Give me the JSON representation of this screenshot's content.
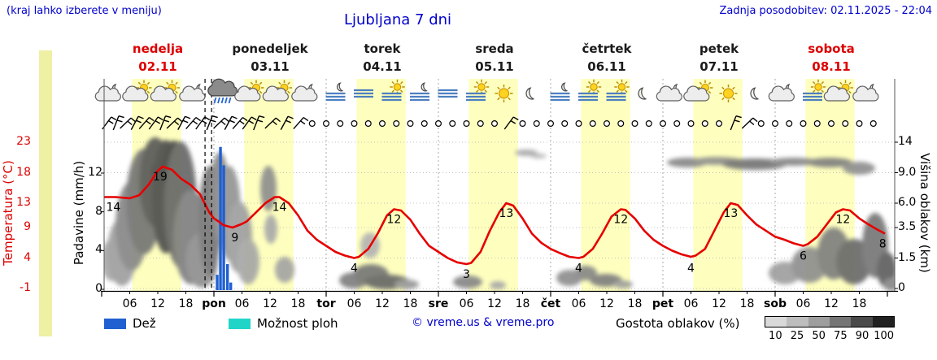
{
  "header": {
    "hint": "(kraj lahko izberete v meniju)",
    "title": "Ljubljana 7 dni",
    "updated": "Zadnja posodobitev: 02.11.2025 - 22:04"
  },
  "days": [
    {
      "name": "nedelja",
      "date": "02.11",
      "color": "#dd0000"
    },
    {
      "name": "ponedeljek",
      "date": "03.11",
      "color": "#1a1a1a"
    },
    {
      "name": "torek",
      "date": "04.11",
      "color": "#1a1a1a"
    },
    {
      "name": "sreda",
      "date": "05.11",
      "color": "#1a1a1a"
    },
    {
      "name": "četrtek",
      "date": "06.11",
      "color": "#1a1a1a"
    },
    {
      "name": "petek",
      "date": "07.11",
      "color": "#1a1a1a"
    },
    {
      "name": "sobota",
      "date": "08.11",
      "color": "#dd0000"
    }
  ],
  "axes": {
    "temp_label": "Temperatura (°C)",
    "precip_label": "Padavine (mm/h)",
    "cloud_label": "Višina oblakov (km)",
    "temp_ticks": [
      23,
      18,
      13,
      9,
      4,
      -1
    ],
    "cloud_ticks": [
      "14",
      "9.0",
      "6.0",
      "3.5",
      "1.5",
      "0"
    ],
    "precip_ticks": [
      12,
      8,
      4,
      0
    ],
    "hour_labels": [
      "06",
      "12",
      "18"
    ],
    "day_abbrs": [
      "pon",
      "tor",
      "sre",
      "čet",
      "pet",
      "sob"
    ]
  },
  "legend": {
    "rain_label": "Dež",
    "rain_color": "#2060d0",
    "showers_label": "Možnost ploh",
    "showers_color": "#20d5c8",
    "credit": "© vreme.us & vreme.pro",
    "density_label": "Gostota oblakov (%)",
    "density_values": [
      "10",
      "25",
      "50",
      "75",
      "90",
      "100"
    ],
    "density_shades": [
      "#d9d9d9",
      "#bdbdbd",
      "#9e9e9e",
      "#757575",
      "#4a4a4a",
      "#212121"
    ]
  },
  "chart_data": {
    "type": "line",
    "title": "Ljubljana 7 dni (meteogram)",
    "x_unit": "hours since 02.11 00:00",
    "colors": {
      "temp": "#e60000",
      "rain": "#2060d0",
      "day_band": "#feffbe",
      "now_line": "#000000"
    },
    "temp_unit": "°C",
    "temp_points": [
      [
        0.5,
        14
      ],
      [
        3,
        14
      ],
      [
        6,
        13.8
      ],
      [
        8,
        14.3
      ],
      [
        10,
        16
      ],
      [
        12,
        18.3
      ],
      [
        13,
        19
      ],
      [
        15,
        18.5
      ],
      [
        17,
        17
      ],
      [
        19,
        16
      ],
      [
        21,
        14.5
      ],
      [
        22,
        13
      ],
      [
        23,
        11.5
      ],
      [
        24,
        10.5
      ],
      [
        25,
        10
      ],
      [
        26,
        9.4
      ],
      [
        28,
        9
      ],
      [
        30,
        9.6
      ],
      [
        31,
        10
      ],
      [
        33,
        11.5
      ],
      [
        35,
        13
      ],
      [
        37,
        14
      ],
      [
        38,
        14
      ],
      [
        40,
        13
      ],
      [
        42,
        11
      ],
      [
        44,
        8.5
      ],
      [
        46,
        7
      ],
      [
        48,
        6
      ],
      [
        50,
        5
      ],
      [
        52,
        4.4
      ],
      [
        54,
        4
      ],
      [
        55,
        4.2
      ],
      [
        57,
        5.5
      ],
      [
        59,
        8
      ],
      [
        61,
        11
      ],
      [
        62.5,
        12
      ],
      [
        64,
        11.8
      ],
      [
        66,
        10.3
      ],
      [
        68,
        8
      ],
      [
        70,
        6
      ],
      [
        72,
        5
      ],
      [
        74,
        4
      ],
      [
        76,
        3.3
      ],
      [
        78,
        3
      ],
      [
        79,
        3.2
      ],
      [
        81,
        5
      ],
      [
        83,
        8.5
      ],
      [
        85,
        11.5
      ],
      [
        86.5,
        13
      ],
      [
        88,
        12.6
      ],
      [
        90,
        10.5
      ],
      [
        92,
        8
      ],
      [
        94,
        6.5
      ],
      [
        96,
        5.5
      ],
      [
        98,
        4.8
      ],
      [
        100,
        4.2
      ],
      [
        102,
        4
      ],
      [
        103,
        4.2
      ],
      [
        105,
        5.5
      ],
      [
        107,
        8
      ],
      [
        109,
        10.8
      ],
      [
        111,
        12
      ],
      [
        112,
        11.9
      ],
      [
        114,
        10.5
      ],
      [
        116,
        8.5
      ],
      [
        118,
        7
      ],
      [
        120,
        6
      ],
      [
        122,
        5.2
      ],
      [
        124,
        4.6
      ],
      [
        126,
        4.2
      ],
      [
        127,
        4.4
      ],
      [
        129,
        5.5
      ],
      [
        131,
        8.5
      ],
      [
        133,
        11.5
      ],
      [
        134.5,
        13
      ],
      [
        136,
        12.7
      ],
      [
        138,
        11
      ],
      [
        140,
        9.5
      ],
      [
        142,
        8.5
      ],
      [
        144,
        7.5
      ],
      [
        146,
        7
      ],
      [
        148,
        6.4
      ],
      [
        150,
        6
      ],
      [
        151,
        6.3
      ],
      [
        153,
        7.5
      ],
      [
        155,
        9.5
      ],
      [
        157,
        11.5
      ],
      [
        158.5,
        12
      ],
      [
        160,
        11.8
      ],
      [
        162,
        10.5
      ],
      [
        164,
        9.5
      ],
      [
        166,
        8.6
      ],
      [
        167.5,
        8
      ]
    ],
    "temp_labels": [
      [
        2.5,
        14
      ],
      [
        12.5,
        19
      ],
      [
        28.5,
        9
      ],
      [
        38,
        14
      ],
      [
        54,
        4
      ],
      [
        62.5,
        12
      ],
      [
        78,
        3
      ],
      [
        86.5,
        13
      ],
      [
        102,
        4
      ],
      [
        111,
        12
      ],
      [
        126,
        4
      ],
      [
        134.5,
        13
      ],
      [
        150,
        6
      ],
      [
        158.5,
        12
      ],
      [
        167,
        8
      ]
    ],
    "precip_unit": "mm/h",
    "rain_bars": [
      [
        24.7,
        1.5
      ],
      [
        25.4,
        14.7
      ],
      [
        26.1,
        12.8
      ],
      [
        26.9,
        2.6
      ],
      [
        27.6,
        0.7
      ]
    ],
    "now_lines": [
      22.1,
      23.5
    ],
    "day_band_hours": [
      6.5,
      17
    ],
    "icons": [
      [
        2,
        "cloud-moon"
      ],
      [
        8,
        "sun-cloud"
      ],
      [
        14,
        "sun-cloud"
      ],
      [
        20,
        "cloud-moon"
      ],
      [
        26,
        "rain"
      ],
      [
        32,
        "sun-cloud"
      ],
      [
        38,
        "sun-cloud"
      ],
      [
        44,
        "cloud-moon"
      ],
      [
        50,
        "moon-fog"
      ],
      [
        56,
        "fog"
      ],
      [
        62,
        "fog-sun"
      ],
      [
        68,
        "moon-fog"
      ],
      [
        74,
        "fog"
      ],
      [
        80,
        "fog-sun"
      ],
      [
        86,
        "sun"
      ],
      [
        92,
        "moon"
      ],
      [
        98,
        "moon-fog"
      ],
      [
        104,
        "fog-sun"
      ],
      [
        110,
        "fog-sun"
      ],
      [
        116,
        "moon"
      ],
      [
        122,
        "cloud-moon"
      ],
      [
        128,
        "sun-cloud"
      ],
      [
        134,
        "sun"
      ],
      [
        140,
        "moon"
      ],
      [
        146,
        "cloud-moon"
      ],
      [
        152,
        "fog-sun"
      ],
      [
        158,
        "sun-cloud"
      ],
      [
        164,
        "cloud-moon"
      ]
    ],
    "wind_barbs": [
      1,
      3,
      5,
      7,
      9,
      11,
      13,
      15,
      17,
      19,
      21,
      23,
      25,
      27,
      29,
      31,
      33,
      36,
      39,
      42,
      87,
      135,
      138
    ],
    "wind_calm": {
      "from": 45,
      "to": 166,
      "step": 3,
      "skip": [
        87,
        135,
        138
      ]
    },
    "cloud_blobs": [
      [
        138,
        320,
        14,
        26,
        0.3
      ],
      [
        150,
        310,
        18,
        42,
        0.35
      ],
      [
        162,
        278,
        20,
        55,
        0.5
      ],
      [
        177,
        248,
        22,
        65,
        0.62
      ],
      [
        191,
        224,
        20,
        55,
        0.78
      ],
      [
        196,
        212,
        10,
        14,
        0.92
      ],
      [
        204,
        242,
        18,
        70,
        0.85
      ],
      [
        214,
        208,
        15,
        35,
        0.9
      ],
      [
        222,
        252,
        20,
        78,
        0.7
      ],
      [
        235,
        292,
        22,
        58,
        0.55
      ],
      [
        248,
        320,
        20,
        34,
        0.45
      ],
      [
        258,
        272,
        14,
        68,
        0.6
      ],
      [
        270,
        242,
        12,
        55,
        0.5
      ],
      [
        282,
        262,
        14,
        58,
        0.42
      ],
      [
        294,
        292,
        16,
        44,
        0.35
      ],
      [
        305,
        322,
        14,
        28,
        0.3
      ],
      [
        330,
        232,
        10,
        28,
        0.45
      ],
      [
        333,
        282,
        8,
        18,
        0.28
      ],
      [
        350,
        332,
        12,
        16,
        0.32
      ],
      [
        435,
        345,
        18,
        10,
        0.55
      ],
      [
        456,
        338,
        22,
        13,
        0.6
      ],
      [
        476,
        347,
        28,
        9,
        0.7
      ],
      [
        500,
        350,
        15,
        6,
        0.4
      ],
      [
        455,
        302,
        12,
        16,
        0.22
      ],
      [
        575,
        347,
        18,
        8,
        0.5
      ],
      [
        612,
        351,
        10,
        5,
        0.3
      ],
      [
        647,
        188,
        14,
        4,
        0.3
      ],
      [
        662,
        192,
        10,
        3,
        0.2
      ],
      [
        700,
        342,
        16,
        10,
        0.45
      ],
      [
        720,
        336,
        14,
        9,
        0.5
      ],
      [
        745,
        345,
        20,
        8,
        0.55
      ],
      [
        766,
        350,
        12,
        5,
        0.35
      ],
      [
        845,
        200,
        25,
        6,
        0.5
      ],
      [
        882,
        198,
        30,
        5,
        0.45
      ],
      [
        928,
        202,
        40,
        7,
        0.62
      ],
      [
        976,
        199,
        30,
        5,
        0.5
      ],
      [
        1020,
        200,
        28,
        6,
        0.55
      ],
      [
        1056,
        207,
        20,
        8,
        0.45
      ],
      [
        965,
        336,
        20,
        14,
        0.35
      ],
      [
        995,
        326,
        22,
        22,
        0.45
      ],
      [
        1025,
        312,
        20,
        32,
        0.55
      ],
      [
        1050,
        322,
        22,
        28,
        0.68
      ],
      [
        1076,
        302,
        16,
        40,
        0.6
      ],
      [
        1090,
        332,
        12,
        22,
        0.75
      ],
      [
        1096,
        350,
        10,
        8,
        0.5
      ]
    ]
  }
}
